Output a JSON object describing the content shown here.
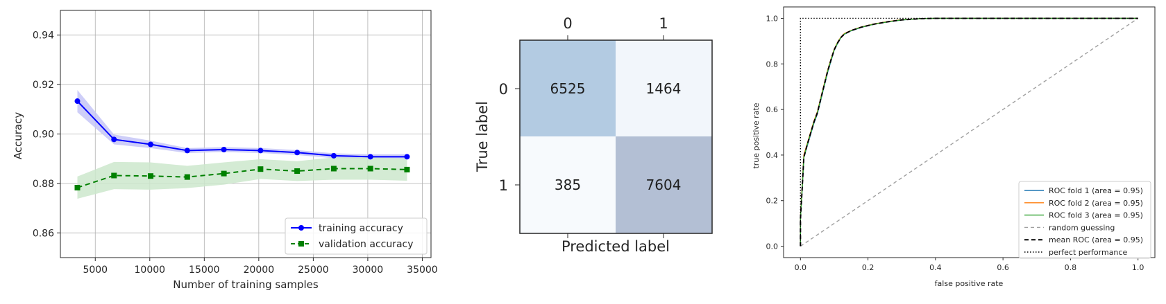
{
  "chart_data": [
    {
      "type": "line",
      "title": "",
      "xlabel": "Number of training samples",
      "ylabel": "Accuracy",
      "xlim": [
        1800,
        35800
      ],
      "ylim": [
        0.85,
        0.95
      ],
      "xticks": [
        5000,
        10000,
        15000,
        20000,
        25000,
        30000,
        35000
      ],
      "yticks": [
        0.86,
        0.88,
        0.9,
        0.92,
        0.94
      ],
      "ytick_labels": [
        "0.86",
        "0.88",
        "0.90",
        "0.92",
        "0.94"
      ],
      "grid": true,
      "legend_position": "lower-right",
      "x": [
        3360,
        6720,
        10080,
        13440,
        16800,
        20160,
        23520,
        26880,
        30240,
        33600
      ],
      "series": [
        {
          "name": "training accuracy",
          "values": [
            0.9133,
            0.8978,
            0.8958,
            0.8933,
            0.8937,
            0.8933,
            0.8925,
            0.8912,
            0.8908,
            0.8908
          ],
          "band": [
            0.0045,
            0.002,
            0.0015,
            0.001,
            0.001,
            0.001,
            0.001,
            0.001,
            0.001,
            0.001
          ],
          "color": "#0000ff",
          "band_color": "#c6c6f7",
          "marker": "circle",
          "linestyle": "solid"
        },
        {
          "name": "validation accuracy",
          "values": [
            0.8783,
            0.8832,
            0.883,
            0.8826,
            0.884,
            0.8858,
            0.885,
            0.886,
            0.886,
            0.8856
          ],
          "band": [
            0.0045,
            0.0055,
            0.0055,
            0.0045,
            0.0045,
            0.004,
            0.004,
            0.0045,
            0.0045,
            0.0045
          ],
          "color": "#008000",
          "band_color": "#cde7cd",
          "marker": "square",
          "linestyle": "dashed"
        }
      ]
    },
    {
      "type": "heatmap",
      "title": "",
      "xlabel": "Predicted label",
      "ylabel": "True label",
      "x_categories": [
        "0",
        "1"
      ],
      "y_categories": [
        "0",
        "1"
      ],
      "values": [
        [
          6525,
          1464
        ],
        [
          385,
          7604
        ]
      ],
      "value_labels": [
        [
          "6525",
          "1464"
        ],
        [
          "385",
          "7604"
        ]
      ],
      "cell_colors": [
        [
          "#b3cbe2",
          "#f2f6fb"
        ],
        [
          "#f7fafd",
          "#b3bfd4"
        ]
      ]
    },
    {
      "type": "line",
      "title": "",
      "xlabel": "false positive rate",
      "ylabel": "true positive rate",
      "xlim": [
        -0.05,
        1.05
      ],
      "ylim": [
        -0.05,
        1.05
      ],
      "xticks": [
        0.0,
        0.2,
        0.4,
        0.6,
        0.8,
        1.0
      ],
      "yticks": [
        0.0,
        0.2,
        0.4,
        0.6,
        0.8,
        1.0
      ],
      "tick_labels": [
        "0.0",
        "0.2",
        "0.4",
        "0.6",
        "0.8",
        "1.0"
      ],
      "grid": false,
      "legend_position": "lower-right",
      "series": [
        {
          "name": "ROC fold 1 (area = 0.95)",
          "color": "#1f77b4",
          "linestyle": "solid",
          "x": [
            0.0,
            0.0,
            0.005,
            0.01,
            0.02,
            0.03,
            0.04,
            0.05,
            0.06,
            0.07,
            0.08,
            0.09,
            0.1,
            0.11,
            0.12,
            0.13,
            0.15,
            0.18,
            0.22,
            0.26,
            0.3,
            0.35,
            0.4,
            0.5,
            0.6,
            0.8,
            1.0
          ],
          "y": [
            0.0,
            0.12,
            0.25,
            0.39,
            0.44,
            0.49,
            0.54,
            0.58,
            0.64,
            0.7,
            0.76,
            0.81,
            0.86,
            0.89,
            0.915,
            0.93,
            0.945,
            0.96,
            0.975,
            0.985,
            0.993,
            0.998,
            1.0,
            1.0,
            1.0,
            1.0,
            1.0
          ]
        },
        {
          "name": "ROC fold 2 (area = 0.95)",
          "color": "#ff7f0e",
          "linestyle": "solid",
          "x": [
            0.0,
            0.0,
            0.005,
            0.01,
            0.02,
            0.03,
            0.04,
            0.05,
            0.06,
            0.07,
            0.08,
            0.09,
            0.1,
            0.11,
            0.12,
            0.13,
            0.15,
            0.18,
            0.22,
            0.26,
            0.3,
            0.35,
            0.4,
            0.5,
            0.6,
            0.8,
            1.0
          ],
          "y": [
            0.0,
            0.13,
            0.26,
            0.4,
            0.45,
            0.5,
            0.55,
            0.59,
            0.65,
            0.71,
            0.77,
            0.82,
            0.865,
            0.895,
            0.918,
            0.933,
            0.947,
            0.962,
            0.976,
            0.986,
            0.994,
            0.998,
            1.0,
            1.0,
            1.0,
            1.0,
            1.0
          ]
        },
        {
          "name": "ROC fold 3 (area = 0.95)",
          "color": "#2ca02c",
          "linestyle": "solid",
          "x": [
            0.0,
            0.0,
            0.005,
            0.01,
            0.02,
            0.03,
            0.04,
            0.05,
            0.06,
            0.07,
            0.08,
            0.09,
            0.1,
            0.11,
            0.12,
            0.13,
            0.15,
            0.18,
            0.22,
            0.26,
            0.3,
            0.35,
            0.4,
            0.5,
            0.6,
            0.8,
            1.0
          ],
          "y": [
            0.0,
            0.12,
            0.25,
            0.39,
            0.445,
            0.495,
            0.545,
            0.585,
            0.645,
            0.705,
            0.765,
            0.815,
            0.862,
            0.892,
            0.916,
            0.931,
            0.946,
            0.961,
            0.975,
            0.985,
            0.993,
            0.998,
            1.0,
            1.0,
            1.0,
            1.0,
            1.0
          ]
        },
        {
          "name": "random guessing",
          "color": "#a0a0a0",
          "linestyle": "dashed",
          "x": [
            0.0,
            1.0
          ],
          "y": [
            0.0,
            1.0
          ]
        },
        {
          "name": "mean ROC (area = 0.95)",
          "color": "#000000",
          "linestyle": "dashed",
          "x": [
            0.0,
            0.0,
            0.005,
            0.01,
            0.02,
            0.03,
            0.04,
            0.05,
            0.06,
            0.07,
            0.08,
            0.09,
            0.1,
            0.11,
            0.12,
            0.13,
            0.15,
            0.18,
            0.22,
            0.26,
            0.3,
            0.35,
            0.4,
            0.5,
            0.6,
            0.8,
            1.0
          ],
          "y": [
            0.0,
            0.12,
            0.25,
            0.39,
            0.445,
            0.495,
            0.545,
            0.585,
            0.645,
            0.705,
            0.765,
            0.815,
            0.862,
            0.892,
            0.916,
            0.931,
            0.946,
            0.961,
            0.975,
            0.985,
            0.993,
            0.998,
            1.0,
            1.0,
            1.0,
            1.0,
            1.0
          ]
        },
        {
          "name": "perfect performance",
          "color": "#000000",
          "linestyle": "dotted",
          "x": [
            0.0,
            0.0,
            1.0
          ],
          "y": [
            0.0,
            1.0,
            1.0
          ]
        }
      ]
    }
  ]
}
